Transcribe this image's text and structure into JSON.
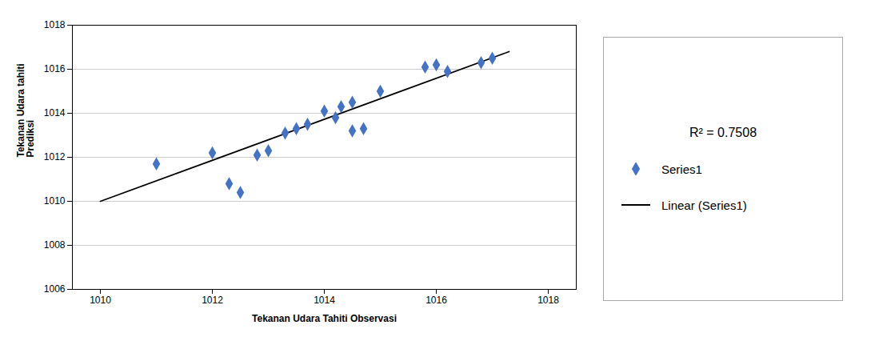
{
  "chart_data": {
    "type": "scatter",
    "xlabel": "Tekanan Udara Tahiti Observasi",
    "ylabel": "Tekanan Udara tahiti\nPrediksi",
    "xlim": [
      1009.5,
      1018.5
    ],
    "ylim": [
      1006,
      1018
    ],
    "xticks": [
      1010,
      1012,
      1014,
      1016,
      1018
    ],
    "yticks": [
      1006,
      1008,
      1010,
      1012,
      1014,
      1016,
      1018
    ],
    "grid": true,
    "legend": "right",
    "annotations": [
      {
        "text": "R² = 0.7508"
      }
    ],
    "series": [
      {
        "name": "Series1",
        "type": "scatter",
        "color": "#4472C4",
        "marker": "diamond",
        "x": [
          1011.0,
          1012.0,
          1012.3,
          1012.5,
          1012.8,
          1013.0,
          1013.3,
          1013.5,
          1013.7,
          1014.0,
          1014.2,
          1014.3,
          1014.5,
          1014.5,
          1014.7,
          1015.0,
          1015.8,
          1016.0,
          1016.2,
          1016.8,
          1017.0
        ],
        "values": [
          1011.7,
          1012.2,
          1010.8,
          1010.4,
          1012.1,
          1012.3,
          1013.1,
          1013.3,
          1013.5,
          1014.1,
          1013.8,
          1014.3,
          1014.5,
          1013.2,
          1013.3,
          1015.0,
          1016.1,
          1016.2,
          1015.9,
          1016.3,
          1016.5
        ]
      },
      {
        "name": "Linear (Series1)",
        "type": "line",
        "color": "#000000",
        "line_style": "solid",
        "x": [
          1010.0,
          1017.3
        ],
        "values": [
          1010.0,
          1016.8
        ]
      }
    ]
  }
}
